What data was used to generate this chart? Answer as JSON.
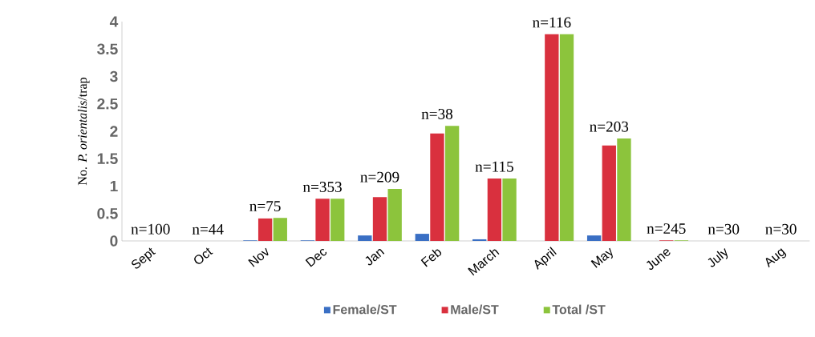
{
  "chart_data": {
    "type": "bar",
    "ylabel": "No. *P. orientalis*/trap",
    "categories": [
      "Sept",
      "Oct",
      "Nov",
      "Dec",
      "Jan",
      "Feb",
      "March",
      "April",
      "May",
      "June",
      "July",
      "Aug"
    ],
    "series": [
      {
        "name": "Female/ST",
        "color": "#3a6fc4",
        "values": [
          0,
          0,
          0.01,
          0.01,
          0.1,
          0.13,
          0.03,
          0,
          0.1,
          0,
          0,
          0
        ]
      },
      {
        "name": "Male/ST",
        "color": "#d9303e",
        "values": [
          0,
          0,
          0.41,
          0.77,
          0.8,
          1.96,
          1.14,
          3.77,
          1.74,
          0.01,
          0,
          0
        ]
      },
      {
        "name": "Total /ST",
        "color": "#8cc43c",
        "values": [
          0,
          0,
          0.42,
          0.77,
          0.95,
          2.1,
          1.14,
          3.77,
          1.87,
          0.01,
          0,
          0
        ]
      }
    ],
    "ylim": [
      0,
      4
    ],
    "yticks": [
      0,
      0.5,
      1,
      1.5,
      2,
      2.5,
      3,
      3.5,
      4
    ],
    "annotations": [
      "n=100",
      "n=44",
      "n=75",
      "n=353",
      "n=209",
      "n=38",
      "n=115",
      "n=116",
      "n=203",
      "n=245",
      "n=30",
      "n=30"
    ],
    "grid": false,
    "legend": "bottom"
  }
}
